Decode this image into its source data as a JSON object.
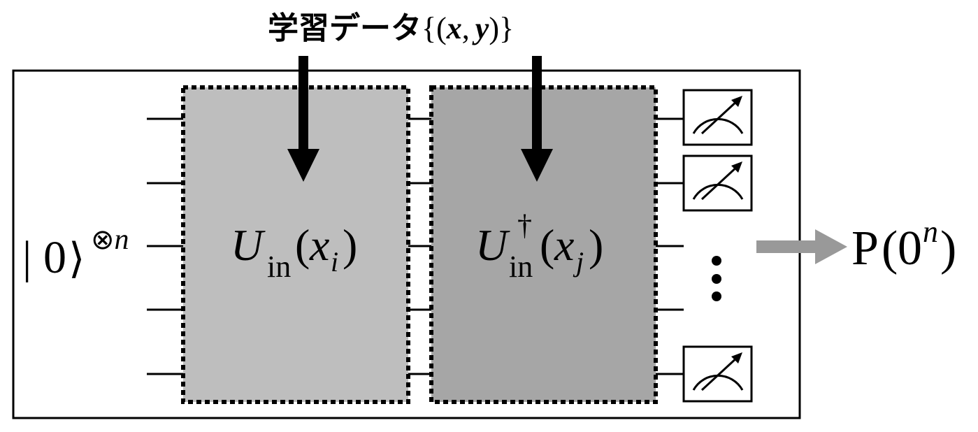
{
  "title": {
    "label": "学習データ",
    "brace_open": "{",
    "paren_open": "(",
    "var_x": "x",
    "comma": ",",
    "var_y": "y",
    "paren_close": ")",
    "brace_close": "}"
  },
  "input_state": {
    "bar": "|",
    "zero": "0",
    "angle": "⟩",
    "tensor": "⊗",
    "n": "n"
  },
  "gate_encode": {
    "U": "U",
    "sub": "in",
    "open": "(",
    "x": "x",
    "index": "i",
    "close": ")"
  },
  "gate_inverse": {
    "U": "U",
    "dagger": "†",
    "sub": "in",
    "open": "(",
    "x": "x",
    "index": "j",
    "close": ")"
  },
  "output": {
    "P": "P",
    "open": "(",
    "zero": "0",
    "n": "n",
    "close": ")"
  },
  "colors": {
    "gate_encode_fill": "#bebebe",
    "gate_inverse_fill": "#a6a6a6",
    "output_arrow": "#999999",
    "stroke": "#000000"
  },
  "icons": {
    "meter": "measurement-meter-icon",
    "vdots": "vertical-ellipsis-icon"
  }
}
